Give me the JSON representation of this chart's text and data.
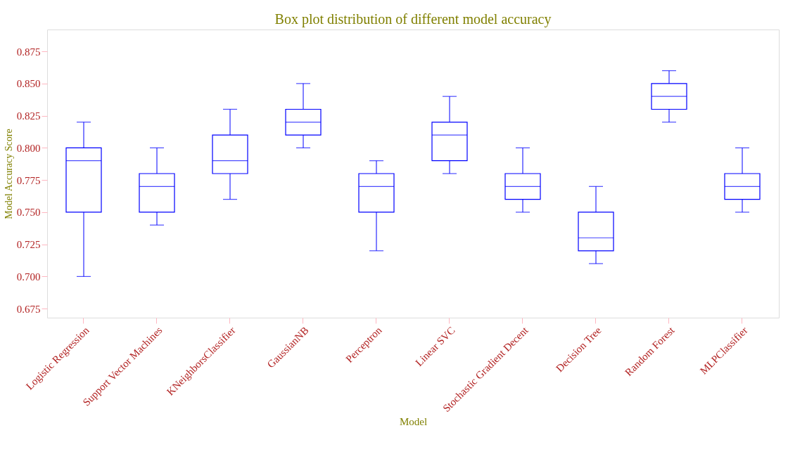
{
  "chart_data": {
    "type": "box",
    "title": "Box plot distribution of different model accuracy",
    "xlabel": "Model",
    "ylabel": "Model Accuracy Score",
    "categories": [
      "Logistic Regression",
      "Support Vector Machines",
      "KNeighborsClassifier",
      "GaussianNB",
      "Perceptron",
      "Linear SVC",
      "Stochastic Gradient Decent",
      "Decision Tree",
      "Random Forest",
      "MLPClassifier"
    ],
    "boxes": [
      {
        "low": 0.7,
        "q1": 0.75,
        "median": 0.79,
        "q3": 0.8,
        "high": 0.82
      },
      {
        "low": 0.74,
        "q1": 0.75,
        "median": 0.77,
        "q3": 0.78,
        "high": 0.8
      },
      {
        "low": 0.76,
        "q1": 0.78,
        "median": 0.79,
        "q3": 0.81,
        "high": 0.83
      },
      {
        "low": 0.8,
        "q1": 0.81,
        "median": 0.82,
        "q3": 0.83,
        "high": 0.85
      },
      {
        "low": 0.72,
        "q1": 0.75,
        "median": 0.77,
        "q3": 0.78,
        "high": 0.79
      },
      {
        "low": 0.78,
        "q1": 0.79,
        "median": 0.81,
        "q3": 0.82,
        "high": 0.84
      },
      {
        "low": 0.75,
        "q1": 0.76,
        "median": 0.77,
        "q3": 0.78,
        "high": 0.8
      },
      {
        "low": 0.71,
        "q1": 0.72,
        "median": 0.73,
        "q3": 0.75,
        "high": 0.77
      },
      {
        "low": 0.82,
        "q1": 0.83,
        "median": 0.84,
        "q3": 0.85,
        "high": 0.86
      },
      {
        "low": 0.75,
        "q1": 0.76,
        "median": 0.77,
        "q3": 0.78,
        "high": 0.8
      }
    ],
    "color": "#0000ff",
    "ylim": [
      0.668,
      0.892
    ],
    "yticks": [
      0.675,
      {
        "value": 0.7,
        "label": "0.700"
      },
      0.725,
      {
        "value": 0.75,
        "label": "0.750"
      },
      0.775,
      {
        "value": 0.8,
        "label": "0.800"
      },
      0.825,
      {
        "value": 0.85,
        "label": "0.850"
      },
      0.875
    ],
    "grid": false
  }
}
